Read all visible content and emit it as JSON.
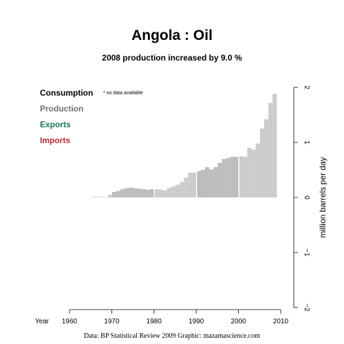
{
  "chart_data": {
    "type": "bar",
    "title": "Angola :  Oil",
    "subtitle": "2008 production increased by 9.0 %",
    "ylabel": "million barrels per day",
    "xlabel": "Year",
    "xlim": [
      1960,
      2010
    ],
    "ylim": [
      -2,
      2
    ],
    "x_ticks": [
      1960,
      1970,
      1980,
      1990,
      2000,
      2010
    ],
    "y_ticks": [
      -2,
      -1,
      0,
      1,
      2
    ],
    "legend": {
      "consumption": {
        "label": "Consumption",
        "color": "#000000"
      },
      "production": {
        "label": "Production",
        "color": "#707070"
      },
      "exports": {
        "label": "Exports",
        "color": "#1a7a5a"
      },
      "imports": {
        "label": "Imports",
        "color": "#c0282d"
      }
    },
    "note": "* no data available",
    "series": [
      {
        "key": "production",
        "years": [
          1965,
          1966,
          1967,
          1968,
          1969,
          1970,
          1971,
          1972,
          1973,
          1974,
          1975,
          1976,
          1977,
          1978,
          1979,
          1980,
          1981,
          1982,
          1983,
          1984,
          1985,
          1986,
          1987,
          1988,
          1989,
          1990,
          1991,
          1992,
          1993,
          1994,
          1995,
          1996,
          1997,
          1998,
          1999,
          2000,
          2001,
          2002,
          2003,
          2004,
          2005,
          2006,
          2007,
          2008
        ],
        "values": [
          0.01,
          0.01,
          0.01,
          0.01,
          0.05,
          0.1,
          0.12,
          0.15,
          0.17,
          0.18,
          0.17,
          0.16,
          0.15,
          0.14,
          0.15,
          0.15,
          0.14,
          0.13,
          0.17,
          0.2,
          0.23,
          0.28,
          0.36,
          0.45,
          0.45,
          0.48,
          0.5,
          0.55,
          0.51,
          0.55,
          0.63,
          0.7,
          0.72,
          0.74,
          0.74,
          0.75,
          0.74,
          0.9,
          0.87,
          0.98,
          1.25,
          1.42,
          1.72,
          1.88
        ]
      }
    ]
  },
  "footer": "Data: BP Statistical Review 2009     Graphic: mazamascience.com"
}
